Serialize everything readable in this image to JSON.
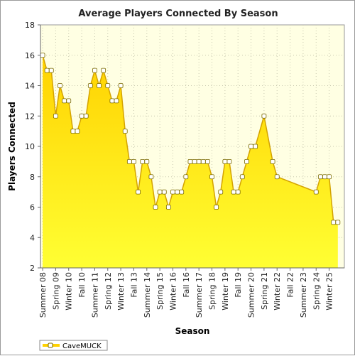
{
  "chart_data": {
    "type": "area",
    "title": "Average Players Connected By Season",
    "xlabel": "Season",
    "ylabel": "Players Connected",
    "ylim": [
      2,
      18
    ],
    "yticks": [
      2,
      4,
      6,
      8,
      10,
      12,
      14,
      16,
      18
    ],
    "grid": true,
    "legend": "bottom-left",
    "colors": {
      "fill_top": "#ffd200",
      "fill_bottom": "#ffff33",
      "line": "#d4a300",
      "marker_fill": "#ffffff",
      "marker_stroke": "#7a6a00",
      "plot_bg": "#ffffe3",
      "grid": "#c8c8b0"
    },
    "tick_labels": [
      "Summer 08",
      "Spring 09",
      "Winter 10",
      "Fall 10",
      "Summer 11",
      "Spring 12",
      "Winter 13",
      "Fall 13",
      "Summer 14",
      "Spring 15",
      "Winter 16",
      "Fall 16",
      "Summer 17",
      "Spring 18",
      "Winter 19",
      "Fall 19",
      "Summer 20",
      "Spring 21",
      "Winter 22",
      "Fall 22",
      "Summer 23",
      "Spring 24",
      "Winter 25"
    ],
    "tick_positions": [
      0,
      3,
      6,
      9,
      12,
      15,
      18,
      21,
      24,
      27,
      30,
      33,
      36,
      39,
      42,
      45,
      48,
      51,
      54,
      57,
      60,
      63,
      66
    ],
    "x_count": 70,
    "series": [
      {
        "name": "CaveMUCK",
        "points": [
          [
            0,
            16
          ],
          [
            1,
            15
          ],
          [
            2,
            15
          ],
          [
            3,
            12
          ],
          [
            4,
            14
          ],
          [
            5,
            13
          ],
          [
            6,
            13
          ],
          [
            7,
            11
          ],
          [
            8,
            11
          ],
          [
            9,
            12
          ],
          [
            10,
            12
          ],
          [
            11,
            14
          ],
          [
            12,
            15
          ],
          [
            13,
            14
          ],
          [
            14,
            15
          ],
          [
            15,
            14
          ],
          [
            16,
            13
          ],
          [
            17,
            13
          ],
          [
            18,
            14
          ],
          [
            19,
            11
          ],
          [
            20,
            9
          ],
          [
            21,
            9
          ],
          [
            22,
            7
          ],
          [
            23,
            9
          ],
          [
            24,
            9
          ],
          [
            25,
            8
          ],
          [
            26,
            6
          ],
          [
            27,
            7
          ],
          [
            28,
            7
          ],
          [
            29,
            6
          ],
          [
            30,
            7
          ],
          [
            31,
            7
          ],
          [
            32,
            7
          ],
          [
            33,
            8
          ],
          [
            34,
            9
          ],
          [
            35,
            9
          ],
          [
            36,
            9
          ],
          [
            37,
            9
          ],
          [
            38,
            9
          ],
          [
            39,
            8
          ],
          [
            40,
            6
          ],
          [
            41,
            7
          ],
          [
            42,
            9
          ],
          [
            43,
            9
          ],
          [
            44,
            7
          ],
          [
            45,
            7
          ],
          [
            46,
            8
          ],
          [
            47,
            9
          ],
          [
            48,
            10
          ],
          [
            49,
            10
          ],
          [
            51,
            12
          ],
          [
            53,
            9
          ],
          [
            54,
            8
          ],
          [
            63,
            7
          ],
          [
            64,
            8
          ],
          [
            65,
            8
          ],
          [
            66,
            8
          ],
          [
            67,
            5
          ],
          [
            68,
            5
          ]
        ]
      }
    ]
  }
}
